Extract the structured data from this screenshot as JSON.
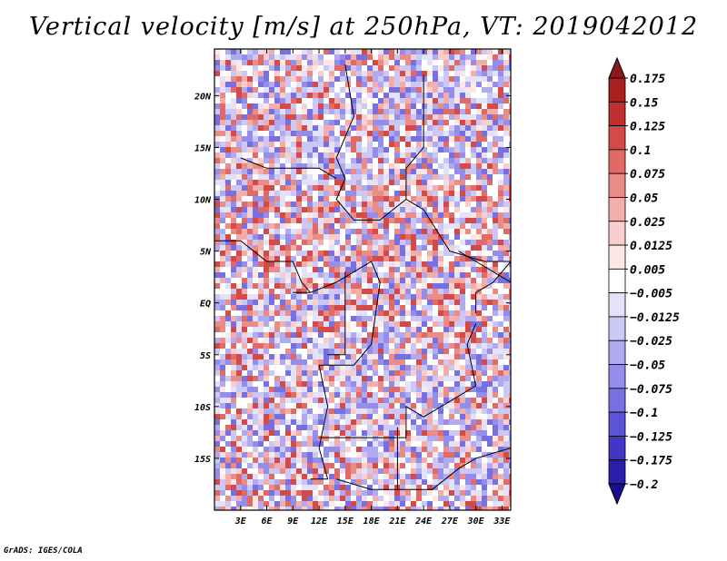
{
  "chart_data": {
    "type": "heatmap",
    "title": "Vertical velocity [m/s] at 250hPa, VT: 2019042012",
    "variable": "Vertical velocity",
    "units": "m/s",
    "level": "250hPa",
    "valid_time": "2019042012",
    "x_ticks": [
      "3E",
      "6E",
      "9E",
      "12E",
      "15E",
      "18E",
      "21E",
      "24E",
      "27E",
      "30E",
      "33E"
    ],
    "x_tick_values": [
      3,
      6,
      9,
      12,
      15,
      18,
      21,
      24,
      27,
      30,
      33
    ],
    "y_ticks": [
      "20N",
      "15N",
      "10N",
      "5N",
      "EQ",
      "5S",
      "10S",
      "15S"
    ],
    "y_tick_values": [
      20,
      15,
      10,
      5,
      0,
      -5,
      -10,
      -15
    ],
    "xlim": [
      0,
      34
    ],
    "ylim": [
      -20,
      24.5
    ],
    "colorbar": {
      "labels": [
        "0.175",
        "0.15",
        "0.125",
        "0.1",
        "0.075",
        "0.05",
        "0.025",
        "0.0125",
        "0.005",
        "−0.005",
        "−0.0125",
        "−0.025",
        "−0.05",
        "−0.075",
        "−0.1",
        "−0.125",
        "−0.175",
        "−0.2"
      ],
      "colors": [
        "#8b1a1a",
        "#a82020",
        "#c03030",
        "#d44a48",
        "#e06a66",
        "#ea8c88",
        "#f2aeaa",
        "#f8cfcc",
        "#fde8e6",
        "#ffffff",
        "#e4e2fb",
        "#ccc8f6",
        "#b0aaf0",
        "#948dea",
        "#7870e0",
        "#5c54d6",
        "#4038c4",
        "#2a1fa8",
        "#1a0f8a"
      ],
      "extend": "both"
    }
  },
  "footer": "GrADS: IGES/COLA"
}
